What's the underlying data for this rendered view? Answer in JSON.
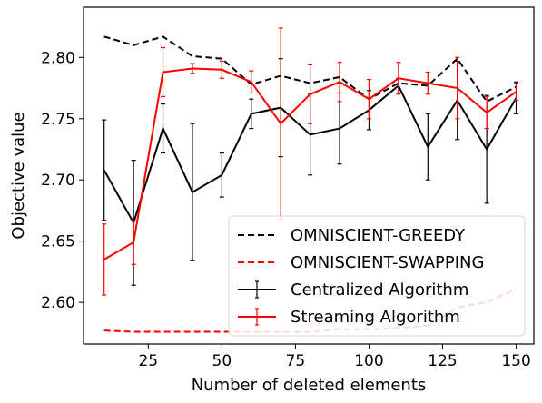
{
  "chart_data": {
    "type": "line",
    "xlabel": "Number of deleted elements",
    "ylabel": "Objective value",
    "xlim": [
      3,
      156
    ],
    "ylim": [
      2.566,
      2.841
    ],
    "x_ticks": [
      25,
      50,
      75,
      100,
      125,
      150
    ],
    "x_tick_labels": [
      "25",
      "50",
      "75",
      "100",
      "125",
      "150"
    ],
    "y_ticks": [
      2.6,
      2.65,
      2.7,
      2.75,
      2.8
    ],
    "y_tick_labels": [
      "2.60",
      "2.65",
      "2.70",
      "2.75",
      "2.80"
    ],
    "grid": false,
    "legend_position": "lower-right",
    "x": [
      10,
      20,
      30,
      40,
      50,
      60,
      70,
      80,
      90,
      100,
      110,
      120,
      130,
      140,
      150
    ],
    "series": [
      {
        "name": "OMNISCIENT-GREEDY",
        "color": "#000000",
        "style": "dashed",
        "values": [
          2.817,
          2.81,
          2.817,
          2.801,
          2.799,
          2.778,
          2.785,
          2.779,
          2.784,
          2.766,
          2.779,
          2.777,
          2.799,
          2.764,
          2.776
        ]
      },
      {
        "name": "OMNISCIENT-SWAPPING",
        "color": "#ff0000",
        "style": "dashed",
        "values": [
          2.577,
          2.576,
          2.576,
          2.576,
          2.576,
          2.576,
          2.576,
          2.576,
          2.578,
          2.578,
          2.579,
          2.581,
          2.596,
          2.6,
          2.611
        ]
      },
      {
        "name": "Centralized Algorithm",
        "color": "#000000",
        "style": "solid",
        "values": [
          2.708,
          2.665,
          2.742,
          2.69,
          2.704,
          2.754,
          2.759,
          2.737,
          2.742,
          2.757,
          2.777,
          2.727,
          2.765,
          2.725,
          2.767
        ],
        "errors": [
          0.041,
          0.051,
          0.02,
          0.056,
          0.018,
          0.012,
          0.04,
          0.033,
          0.029,
          0.016,
          0.006,
          0.027,
          0.032,
          0.044,
          0.013
        ]
      },
      {
        "name": "Streaming Algorithm",
        "color": "#ff0000",
        "style": "solid",
        "values": [
          2.635,
          2.649,
          2.788,
          2.791,
          2.79,
          2.78,
          2.746,
          2.77,
          2.78,
          2.766,
          2.783,
          2.779,
          2.775,
          2.755,
          2.772
        ],
        "errors": [
          0.029,
          0.018,
          0.02,
          0.004,
          0.007,
          0.009,
          0.078,
          0.024,
          0.016,
          0.016,
          0.013,
          0.009,
          0.025,
          0.013,
          0.007
        ]
      }
    ]
  }
}
